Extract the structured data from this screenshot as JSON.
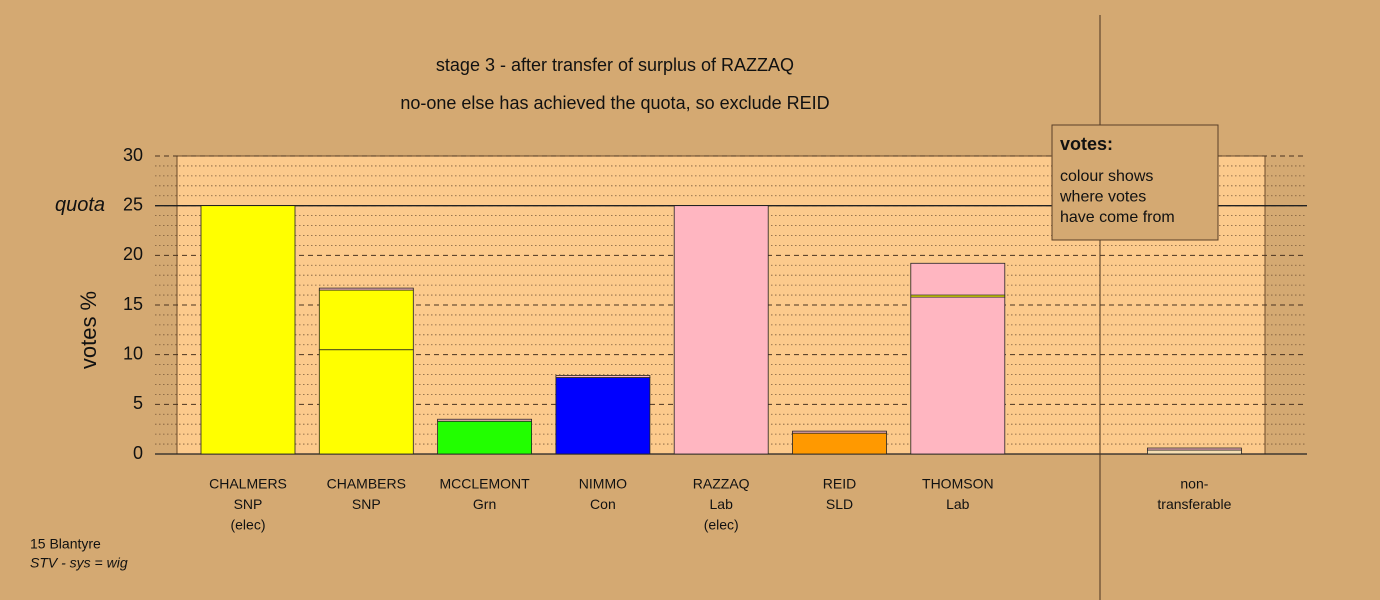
{
  "chart_data": {
    "type": "stacked-bar",
    "title": "stage 3 - after transfer of surplus of RAZZAQ",
    "subtitle": "no-one else has achieved the quota, so exclude REID",
    "y_label": "votes %",
    "ylim": [
      0,
      30
    ],
    "yticks": [
      0,
      5,
      10,
      15,
      20,
      25,
      30
    ],
    "quota": {
      "value": 25,
      "label": "quota"
    },
    "grid": true,
    "categories": [
      [
        "CHALMERS",
        "SNP",
        "(elec)"
      ],
      [
        "CHAMBERS",
        "SNP"
      ],
      [
        "MCCLEMONT",
        "Grn"
      ],
      [
        "NIMMO",
        "Con"
      ],
      [
        "RAZZAQ",
        "Lab",
        "(elec)"
      ],
      [
        "REID",
        "SLD"
      ],
      [
        "THOMSON",
        "Lab"
      ],
      [
        "non-",
        "transferable"
      ]
    ],
    "bars": [
      {
        "segments": [
          {
            "value": 25,
            "color": "#ffff00"
          }
        ]
      },
      {
        "segments": [
          {
            "value": 10.5,
            "color": "#ffff00"
          },
          {
            "value": 6.0,
            "color": "#ffff00"
          },
          {
            "value": 0.2,
            "color": "#ffb6c1"
          }
        ]
      },
      {
        "segments": [
          {
            "value": 3.3,
            "color": "#22ff00"
          },
          {
            "value": 0.2,
            "color": "#ffb6c1"
          }
        ]
      },
      {
        "segments": [
          {
            "value": 7.7,
            "color": "#0000ff"
          },
          {
            "value": 0.2,
            "color": "#ffb6c1"
          }
        ]
      },
      {
        "segments": [
          {
            "value": 25,
            "color": "#ffb6c1"
          }
        ]
      },
      {
        "segments": [
          {
            "value": 2.1,
            "color": "#ff9900"
          },
          {
            "value": 0.2,
            "color": "#ffb6c1"
          }
        ]
      },
      {
        "segments": [
          {
            "value": 15.8,
            "color": "#ffb6c1"
          },
          {
            "value": 0.2,
            "color": "#ffff00"
          },
          {
            "value": 3.2,
            "color": "#ffb6c1"
          }
        ]
      },
      {
        "segments": [
          {
            "value": 0.4,
            "color": "#f5deb3"
          },
          {
            "value": 0.2,
            "color": "#ffb6c1"
          }
        ]
      }
    ],
    "legend_title": "votes:",
    "legend_text": [
      "colour shows",
      "where votes",
      "have come from"
    ],
    "notes": [
      "15 Blantyre",
      "STV - sys = wig"
    ]
  }
}
